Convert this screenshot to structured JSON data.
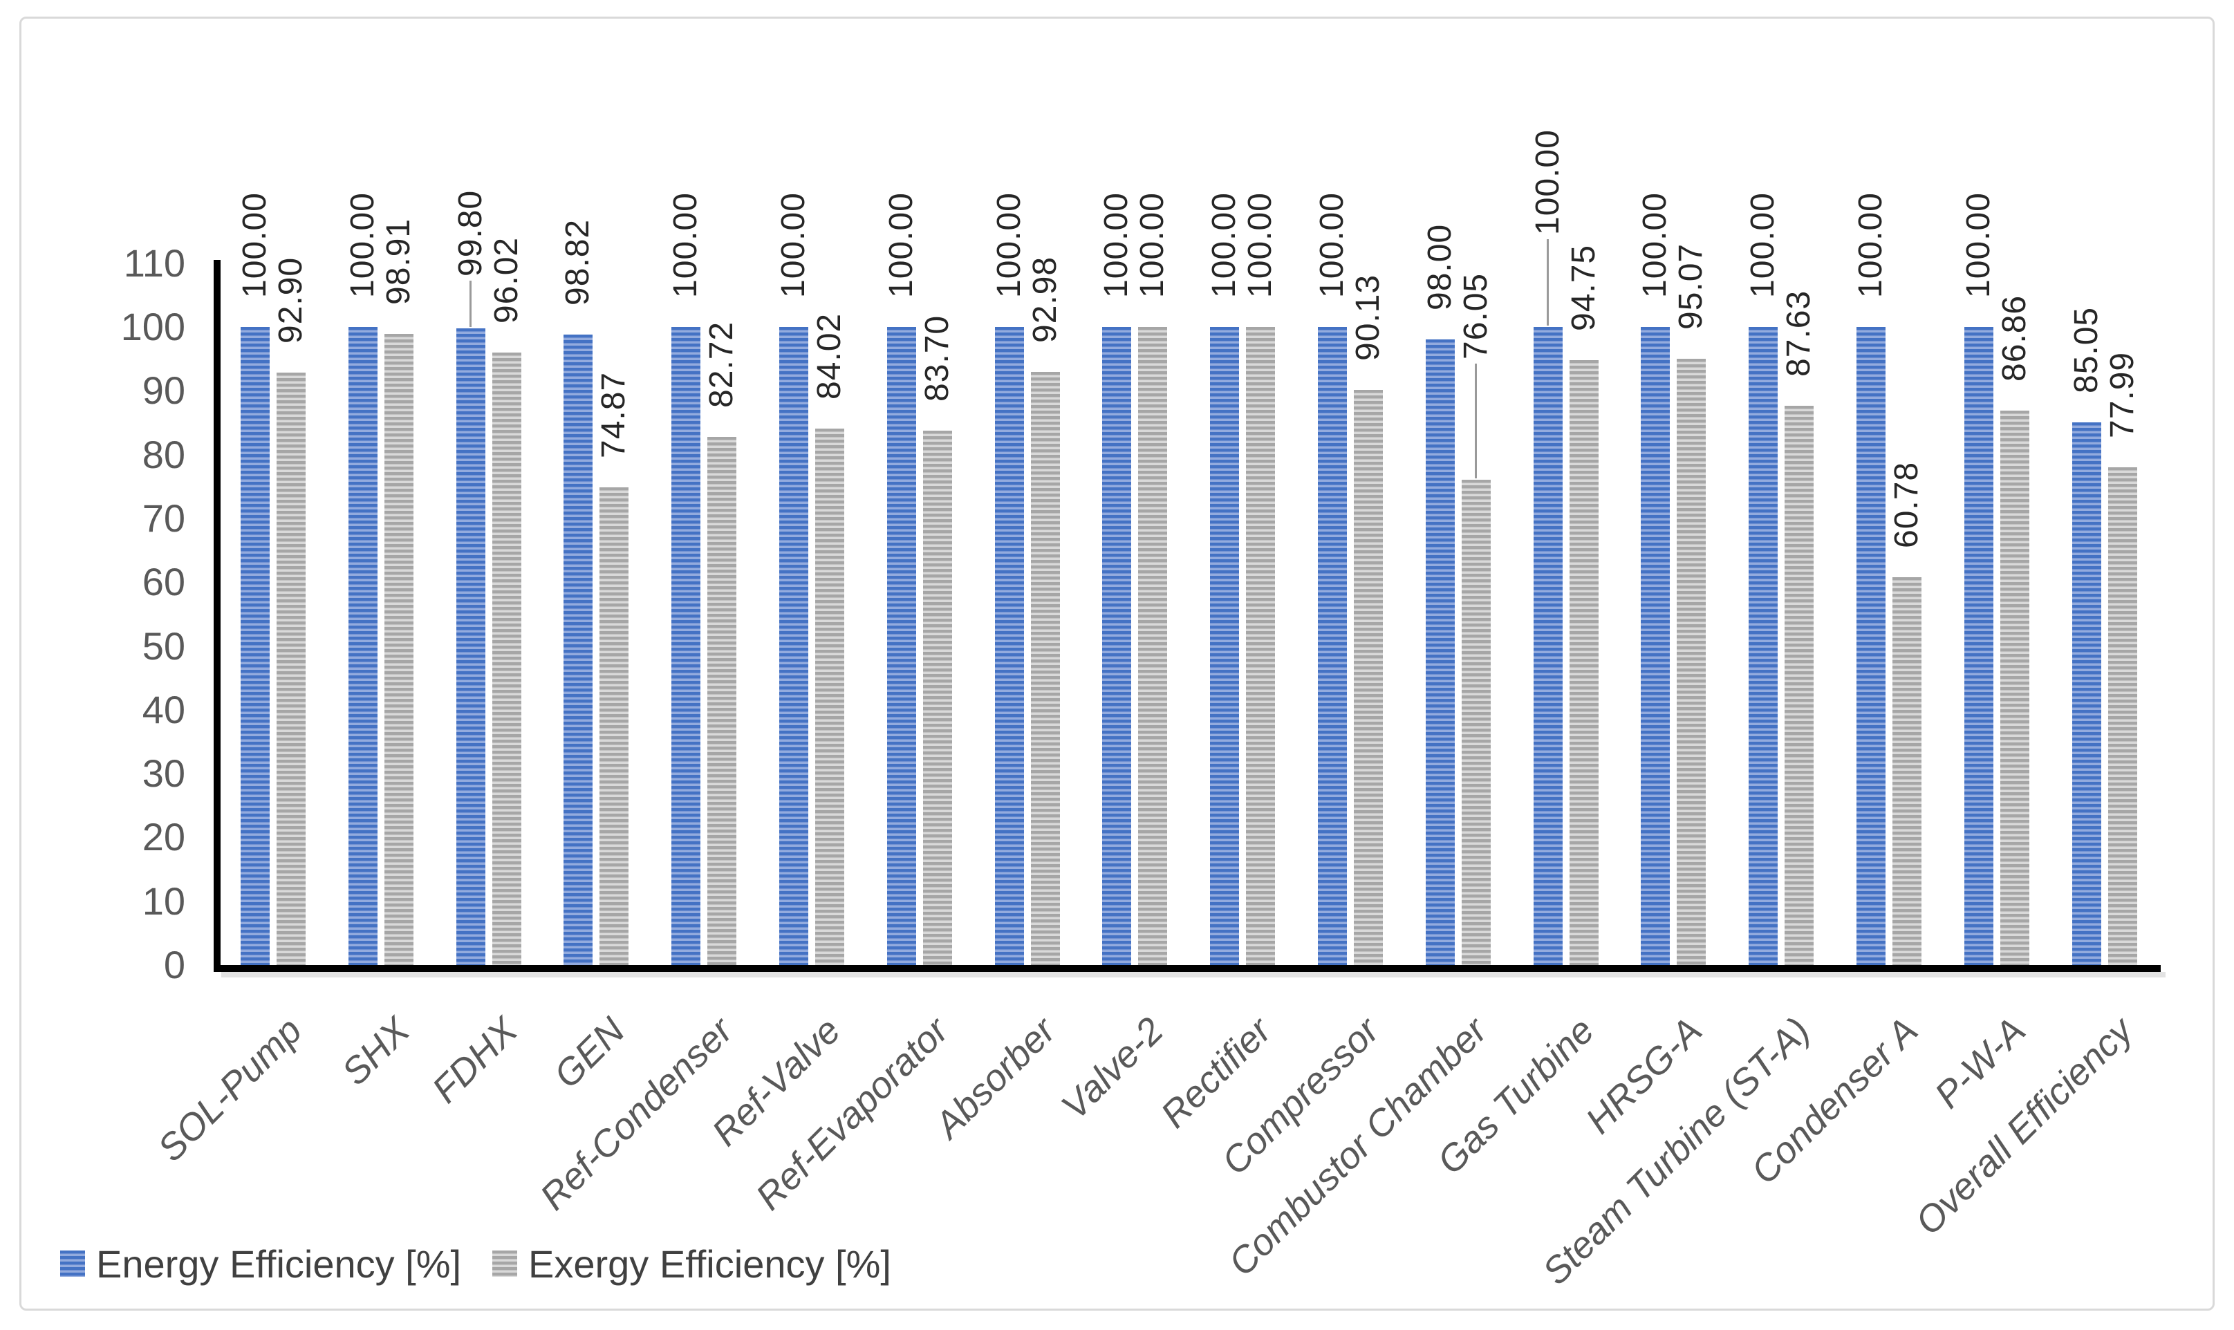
{
  "chart_data": {
    "type": "bar",
    "title": "",
    "xlabel": "",
    "ylabel": "",
    "categories": [
      "SOL-Pump",
      "SHX",
      "FDHX",
      "GEN",
      "Ref-Condenser",
      "Ref-Valve",
      "Ref-Evaporator",
      "Absorber",
      "Valve-2",
      "Rectifier",
      "Compressor",
      "Combustor Chamber",
      "Gas Turbine",
      "HRSG-A",
      "Steam Turbine (ST-A)",
      "Condenser A",
      "P-W-A",
      "Overall Efficiency"
    ],
    "series": [
      {
        "name": "Energy Efficiency [%]",
        "color": "#4472C4",
        "stripe_color": "#93ABDE",
        "values": [
          100.0,
          100.0,
          99.8,
          98.82,
          100.0,
          100.0,
          100.0,
          100.0,
          100.0,
          100.0,
          100.0,
          98.0,
          100.0,
          100.0,
          100.0,
          100.0,
          100.0,
          85.05
        ]
      },
      {
        "name": "Exergy Efficiency [%]",
        "color": "#A6A6A6",
        "stripe_color": "#D9D9D9",
        "values": [
          92.9,
          98.91,
          96.02,
          74.87,
          82.72,
          84.02,
          83.7,
          92.98,
          100.0,
          100.0,
          90.13,
          76.05,
          94.75,
          95.07,
          87.63,
          60.78,
          86.86,
          77.99
        ]
      }
    ],
    "ylim": [
      0,
      110
    ],
    "yticks": [
      0,
      10,
      20,
      30,
      40,
      50,
      60,
      70,
      80,
      90,
      100,
      110
    ],
    "grid": false,
    "bar_pattern": "horizontal-stripes",
    "data_label_rotation": 90,
    "data_label_format": "0.00",
    "legend_position": "bottom-left",
    "callouts": [
      {
        "category": "FDHX",
        "series": 0,
        "label": "99.80",
        "raise": 33
      },
      {
        "category": "Combustor Chamber",
        "series": 1,
        "label": "76.05",
        "raise": 132
      },
      {
        "category": "Gas Turbine",
        "series": 0,
        "label": "100.00",
        "raise": 91
      }
    ],
    "colors": {
      "axis": "#000000",
      "tick_label": "#595959",
      "data_label": "#262626",
      "frame_border": "#D9D9D9",
      "background": "#FFFFFF"
    }
  }
}
